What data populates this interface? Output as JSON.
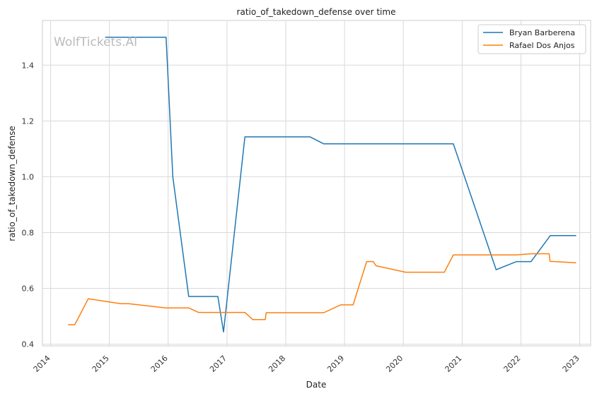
{
  "chart_data": {
    "type": "line",
    "title": "ratio_of_takedown_defense over time",
    "xlabel": "Date",
    "ylabel": "ratio_of_takedown_defense",
    "watermark": "WolfTickets.AI",
    "x_ticks": [
      "2014",
      "2015",
      "2016",
      "2017",
      "2018",
      "2019",
      "2020",
      "2021",
      "2022",
      "2023"
    ],
    "y_ticks": [
      "0.4",
      "0.6",
      "0.8",
      "1.0",
      "1.2",
      "1.4"
    ],
    "xlim": [
      "2013-11-11",
      "2023-03-10"
    ],
    "ylim": [
      0.394,
      1.56
    ],
    "grid": true,
    "legend_position": "top-right",
    "series": [
      {
        "name": "Bryan Barberena",
        "color": "#1f77b4",
        "points": [
          [
            "2014-12-06",
            1.5
          ],
          [
            "2015-12-19",
            1.5
          ],
          [
            "2016-01-30",
            1.0
          ],
          [
            "2016-05-08",
            0.571
          ],
          [
            "2016-11-05",
            0.571
          ],
          [
            "2016-12-10",
            0.444
          ],
          [
            "2017-04-22",
            1.143
          ],
          [
            "2018-06-01",
            1.143
          ],
          [
            "2018-08-25",
            1.118
          ],
          [
            "2020-11-07",
            1.118
          ],
          [
            "2021-07-31",
            0.667
          ],
          [
            "2021-12-04",
            0.696
          ],
          [
            "2022-03-05",
            0.696
          ],
          [
            "2022-07-02",
            0.789
          ],
          [
            "2022-12-10",
            0.789
          ]
        ]
      },
      {
        "name": "Rafael Dos Anjos",
        "color": "#ff7f0e",
        "points": [
          [
            "2014-04-19",
            0.47
          ],
          [
            "2014-05-31",
            0.47
          ],
          [
            "2014-08-23",
            0.563
          ],
          [
            "2014-12-13",
            0.553
          ],
          [
            "2015-03-14",
            0.545
          ],
          [
            "2015-05-01",
            0.545
          ],
          [
            "2015-12-19",
            0.53
          ],
          [
            "2016-05-08",
            0.53
          ],
          [
            "2016-07-07",
            0.514
          ],
          [
            "2016-12-10",
            0.514
          ],
          [
            "2017-04-22",
            0.514
          ],
          [
            "2017-06-10",
            0.488
          ],
          [
            "2017-08-26",
            0.488
          ],
          [
            "2017-09-01",
            0.513
          ],
          [
            "2018-08-25",
            0.513
          ],
          [
            "2018-12-08",
            0.541
          ],
          [
            "2019-02-23",
            0.541
          ],
          [
            "2019-05-18",
            0.696
          ],
          [
            "2019-06-29",
            0.696
          ],
          [
            "2019-07-15",
            0.681
          ],
          [
            "2020-01-15",
            0.658
          ],
          [
            "2020-09-12",
            0.658
          ],
          [
            "2020-11-07",
            0.72
          ],
          [
            "2021-12-04",
            0.72
          ],
          [
            "2022-03-05",
            0.724
          ],
          [
            "2022-06-25",
            0.724
          ],
          [
            "2022-07-01",
            0.697
          ],
          [
            "2022-12-10",
            0.692
          ]
        ]
      }
    ]
  }
}
